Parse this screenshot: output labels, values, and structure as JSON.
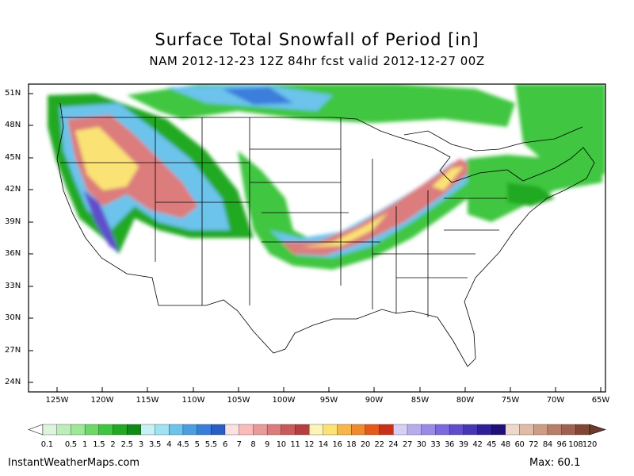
{
  "title": "Surface Total Snowfall of Period [in]",
  "subtitle": "NAM 2012-12-23 12Z 84hr fcst valid 2012-12-27 00Z",
  "lat_labels": [
    "51N",
    "48N",
    "45N",
    "42N",
    "39N",
    "36N",
    "33N",
    "30N",
    "27N",
    "24N"
  ],
  "lon_labels": [
    "125W",
    "120W",
    "115W",
    "110W",
    "105W",
    "100W",
    "95W",
    "90W",
    "85W",
    "80W",
    "75W",
    "70W",
    "65W"
  ],
  "colorbar": {
    "labels": [
      "0.1",
      "0.5",
      "1",
      "1.5",
      "2",
      "2.5",
      "3",
      "3.5",
      "4",
      "4.5",
      "5",
      "5.5",
      "6",
      "7",
      "8",
      "9",
      "10",
      "11",
      "12",
      "14",
      "16",
      "18",
      "20",
      "22",
      "24",
      "27",
      "30",
      "33",
      "36",
      "39",
      "42",
      "45",
      "48",
      "60",
      "72",
      "84",
      "96",
      "108",
      "120"
    ],
    "colors": [
      "#ddf5dc",
      "#bdeeb9",
      "#9be897",
      "#6bd867",
      "#3fc640",
      "#21a924",
      "#118a15",
      "#c8f0f7",
      "#9fe2f2",
      "#6cc3ec",
      "#4a9ee2",
      "#3a7edb",
      "#2a5ec4",
      "#fde0e0",
      "#f9bcbc",
      "#e99a9a",
      "#dc7b7b",
      "#c85a5a",
      "#b53e3e",
      "#fdf4b8",
      "#fbe275",
      "#f8b64a",
      "#ef8a2e",
      "#e35a1b",
      "#c9301a",
      "#d7d0f4",
      "#b8acee",
      "#9a8ae6",
      "#7c68de",
      "#5f4dcc",
      "#4636b6",
      "#2f2099",
      "#1f1078",
      "#eed8cc",
      "#e0bba7",
      "#cd9c85",
      "#b77e68",
      "#9e614f",
      "#834636"
    ],
    "unit": "in"
  },
  "credit": "InstantWeatherMaps.com",
  "max_label": "Max:  60.1"
}
